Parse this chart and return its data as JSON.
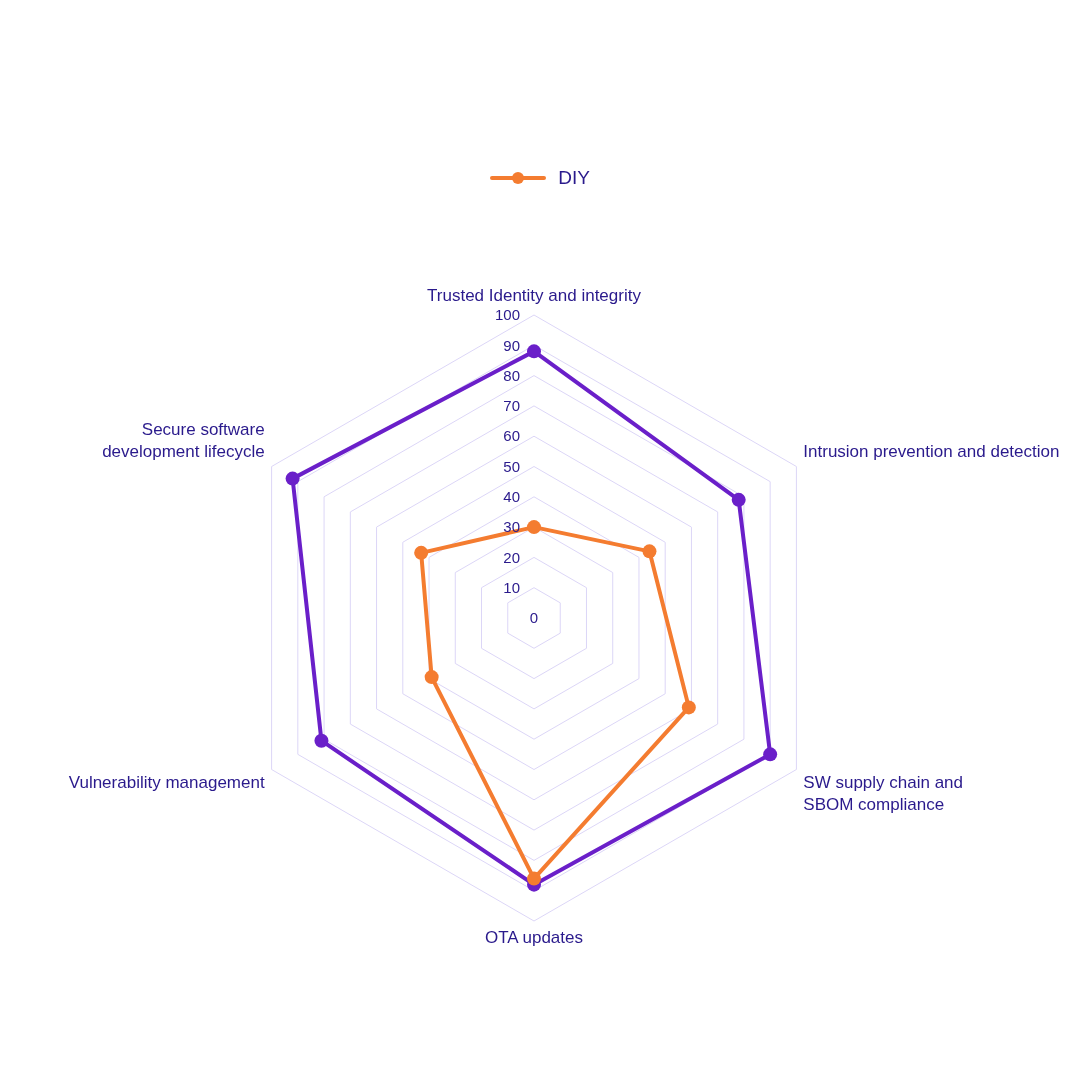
{
  "chart_data": {
    "type": "radar",
    "categories": [
      "Trusted Identity and integrity",
      "Intrusion prevention and detection",
      "SW supply chain and SBOM compliance",
      "OTA updates",
      "Vulnerability management",
      "Secure software development lifecycle"
    ],
    "series": [
      {
        "color": "#6a1fc9",
        "values": [
          88,
          78,
          90,
          88,
          81,
          92
        ]
      },
      {
        "name": "DIY",
        "color": "#f47c30",
        "values": [
          30,
          44,
          59,
          86,
          39,
          43
        ]
      }
    ],
    "ylim": [
      0,
      100
    ],
    "yticks": [
      0,
      10,
      20,
      30,
      40,
      50,
      60,
      70,
      80,
      90,
      100
    ],
    "grid": true,
    "legend": "top",
    "marker": "circle"
  }
}
